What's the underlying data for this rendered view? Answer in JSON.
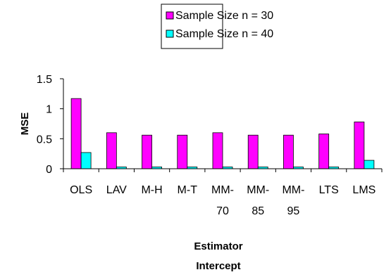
{
  "chart_data": {
    "type": "bar",
    "categories": [
      "OLS",
      "LAV",
      "M-H",
      "M-T",
      "MM-70",
      "MM-85",
      "MM-95",
      "LTS",
      "LMS"
    ],
    "category_lines": [
      [
        "OLS"
      ],
      [
        "LAV"
      ],
      [
        "M-H"
      ],
      [
        "M-T"
      ],
      [
        "MM-",
        "70"
      ],
      [
        "MM-",
        "85"
      ],
      [
        "MM-",
        "95"
      ],
      [
        "LTS"
      ],
      [
        "LMS"
      ]
    ],
    "series": [
      {
        "name": "Sample Size n = 30",
        "color": "#FF00FF",
        "values": [
          1.17,
          0.6,
          0.56,
          0.56,
          0.6,
          0.56,
          0.56,
          0.58,
          0.78
        ]
      },
      {
        "name": "Sample Size n = 40",
        "color": "#00FFFF",
        "values": [
          0.27,
          0.03,
          0.03,
          0.03,
          0.03,
          0.03,
          0.03,
          0.03,
          0.14
        ]
      }
    ],
    "ylabel": "MSE",
    "xlabel": "Estimator",
    "xlabel_line2": "Intercept",
    "ylim": [
      0,
      1.5
    ],
    "yticks": [
      "0",
      "0.5",
      "1",
      "1.5"
    ],
    "ytick_values": [
      0,
      0.5,
      1,
      1.5
    ],
    "grid": false,
    "legend_position": "top-center"
  }
}
